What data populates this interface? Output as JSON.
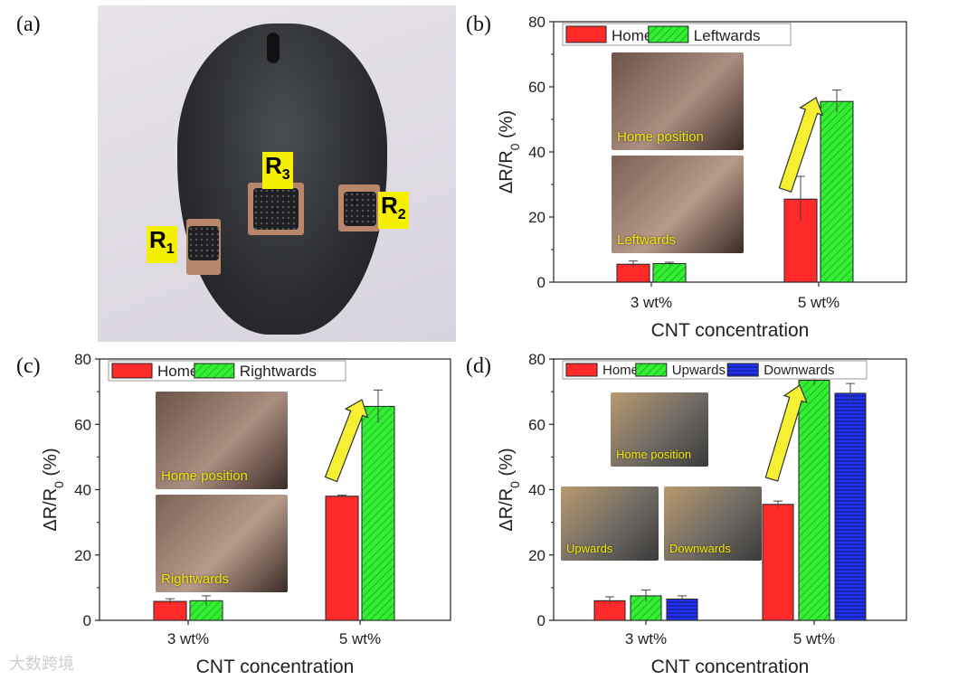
{
  "panels": {
    "a": "(a)",
    "b": "(b)",
    "c": "(c)",
    "d": "(d)"
  },
  "photo_a": {
    "labels": [
      {
        "id": "R",
        "sub": "3"
      },
      {
        "id": "R",
        "sub": "2"
      },
      {
        "id": "R",
        "sub": "1"
      }
    ]
  },
  "insets": {
    "b": [
      "Home position",
      "Leftwards"
    ],
    "c": [
      "Home position",
      "Rightwards"
    ],
    "d": [
      "Home position",
      "Upwards",
      "Downwards"
    ]
  },
  "watermark": "大数跨境",
  "colors": {
    "home": "#ff2a2a",
    "green": "#33ee33",
    "blue": "#2233ee",
    "arrow": "#f5f032"
  },
  "chart_data": [
    {
      "panel": "b",
      "type": "bar",
      "categories": [
        "3 wt%",
        "5 wt%"
      ],
      "series": [
        {
          "name": "Home",
          "values": [
            5.5,
            25.5
          ],
          "errors": [
            1.0,
            7.0
          ],
          "color": "#ff2a2a",
          "hatch": false
        },
        {
          "name": "Leftwards",
          "values": [
            5.7,
            55.5
          ],
          "errors": [
            0.4,
            3.5
          ],
          "color": "#33ee33",
          "hatch": true
        }
      ],
      "xlabel": "CNT concentration",
      "ylabel": "ΔR/R0 (%)",
      "ylim": [
        0,
        80
      ],
      "yticks": [
        0,
        20,
        40,
        60,
        80
      ],
      "legend": "top-left"
    },
    {
      "panel": "c",
      "type": "bar",
      "categories": [
        "3 wt%",
        "5 wt%"
      ],
      "series": [
        {
          "name": "Home",
          "values": [
            5.8,
            38
          ],
          "errors": [
            0.8,
            0.3
          ],
          "color": "#ff2a2a",
          "hatch": false
        },
        {
          "name": "Rightwards",
          "values": [
            6.0,
            65.5
          ],
          "errors": [
            1.5,
            5.0
          ],
          "color": "#33ee33",
          "hatch": true
        }
      ],
      "xlabel": "CNT concentration",
      "ylabel": "ΔR/R0 (%)",
      "ylim": [
        0,
        80
      ],
      "yticks": [
        0,
        20,
        40,
        60,
        80
      ],
      "legend": "top-left"
    },
    {
      "panel": "d",
      "type": "bar",
      "categories": [
        "3 wt%",
        "5 wt%"
      ],
      "series": [
        {
          "name": "Home",
          "values": [
            6.0,
            35.5
          ],
          "errors": [
            1.2,
            1.0
          ],
          "color": "#ff2a2a",
          "hatch": false
        },
        {
          "name": "Upwards",
          "values": [
            7.5,
            73.5
          ],
          "errors": [
            1.8,
            1.5
          ],
          "color": "#33ee33",
          "hatch": true
        },
        {
          "name": "Downwards",
          "values": [
            6.5,
            69.5
          ],
          "errors": [
            1.0,
            3.0
          ],
          "color": "#2233ee",
          "hatch": true
        }
      ],
      "xlabel": "CNT concentration",
      "ylabel": "ΔR/R0 (%)",
      "ylim": [
        0,
        80
      ],
      "yticks": [
        0,
        20,
        40,
        60,
        80
      ],
      "legend": "top"
    }
  ]
}
